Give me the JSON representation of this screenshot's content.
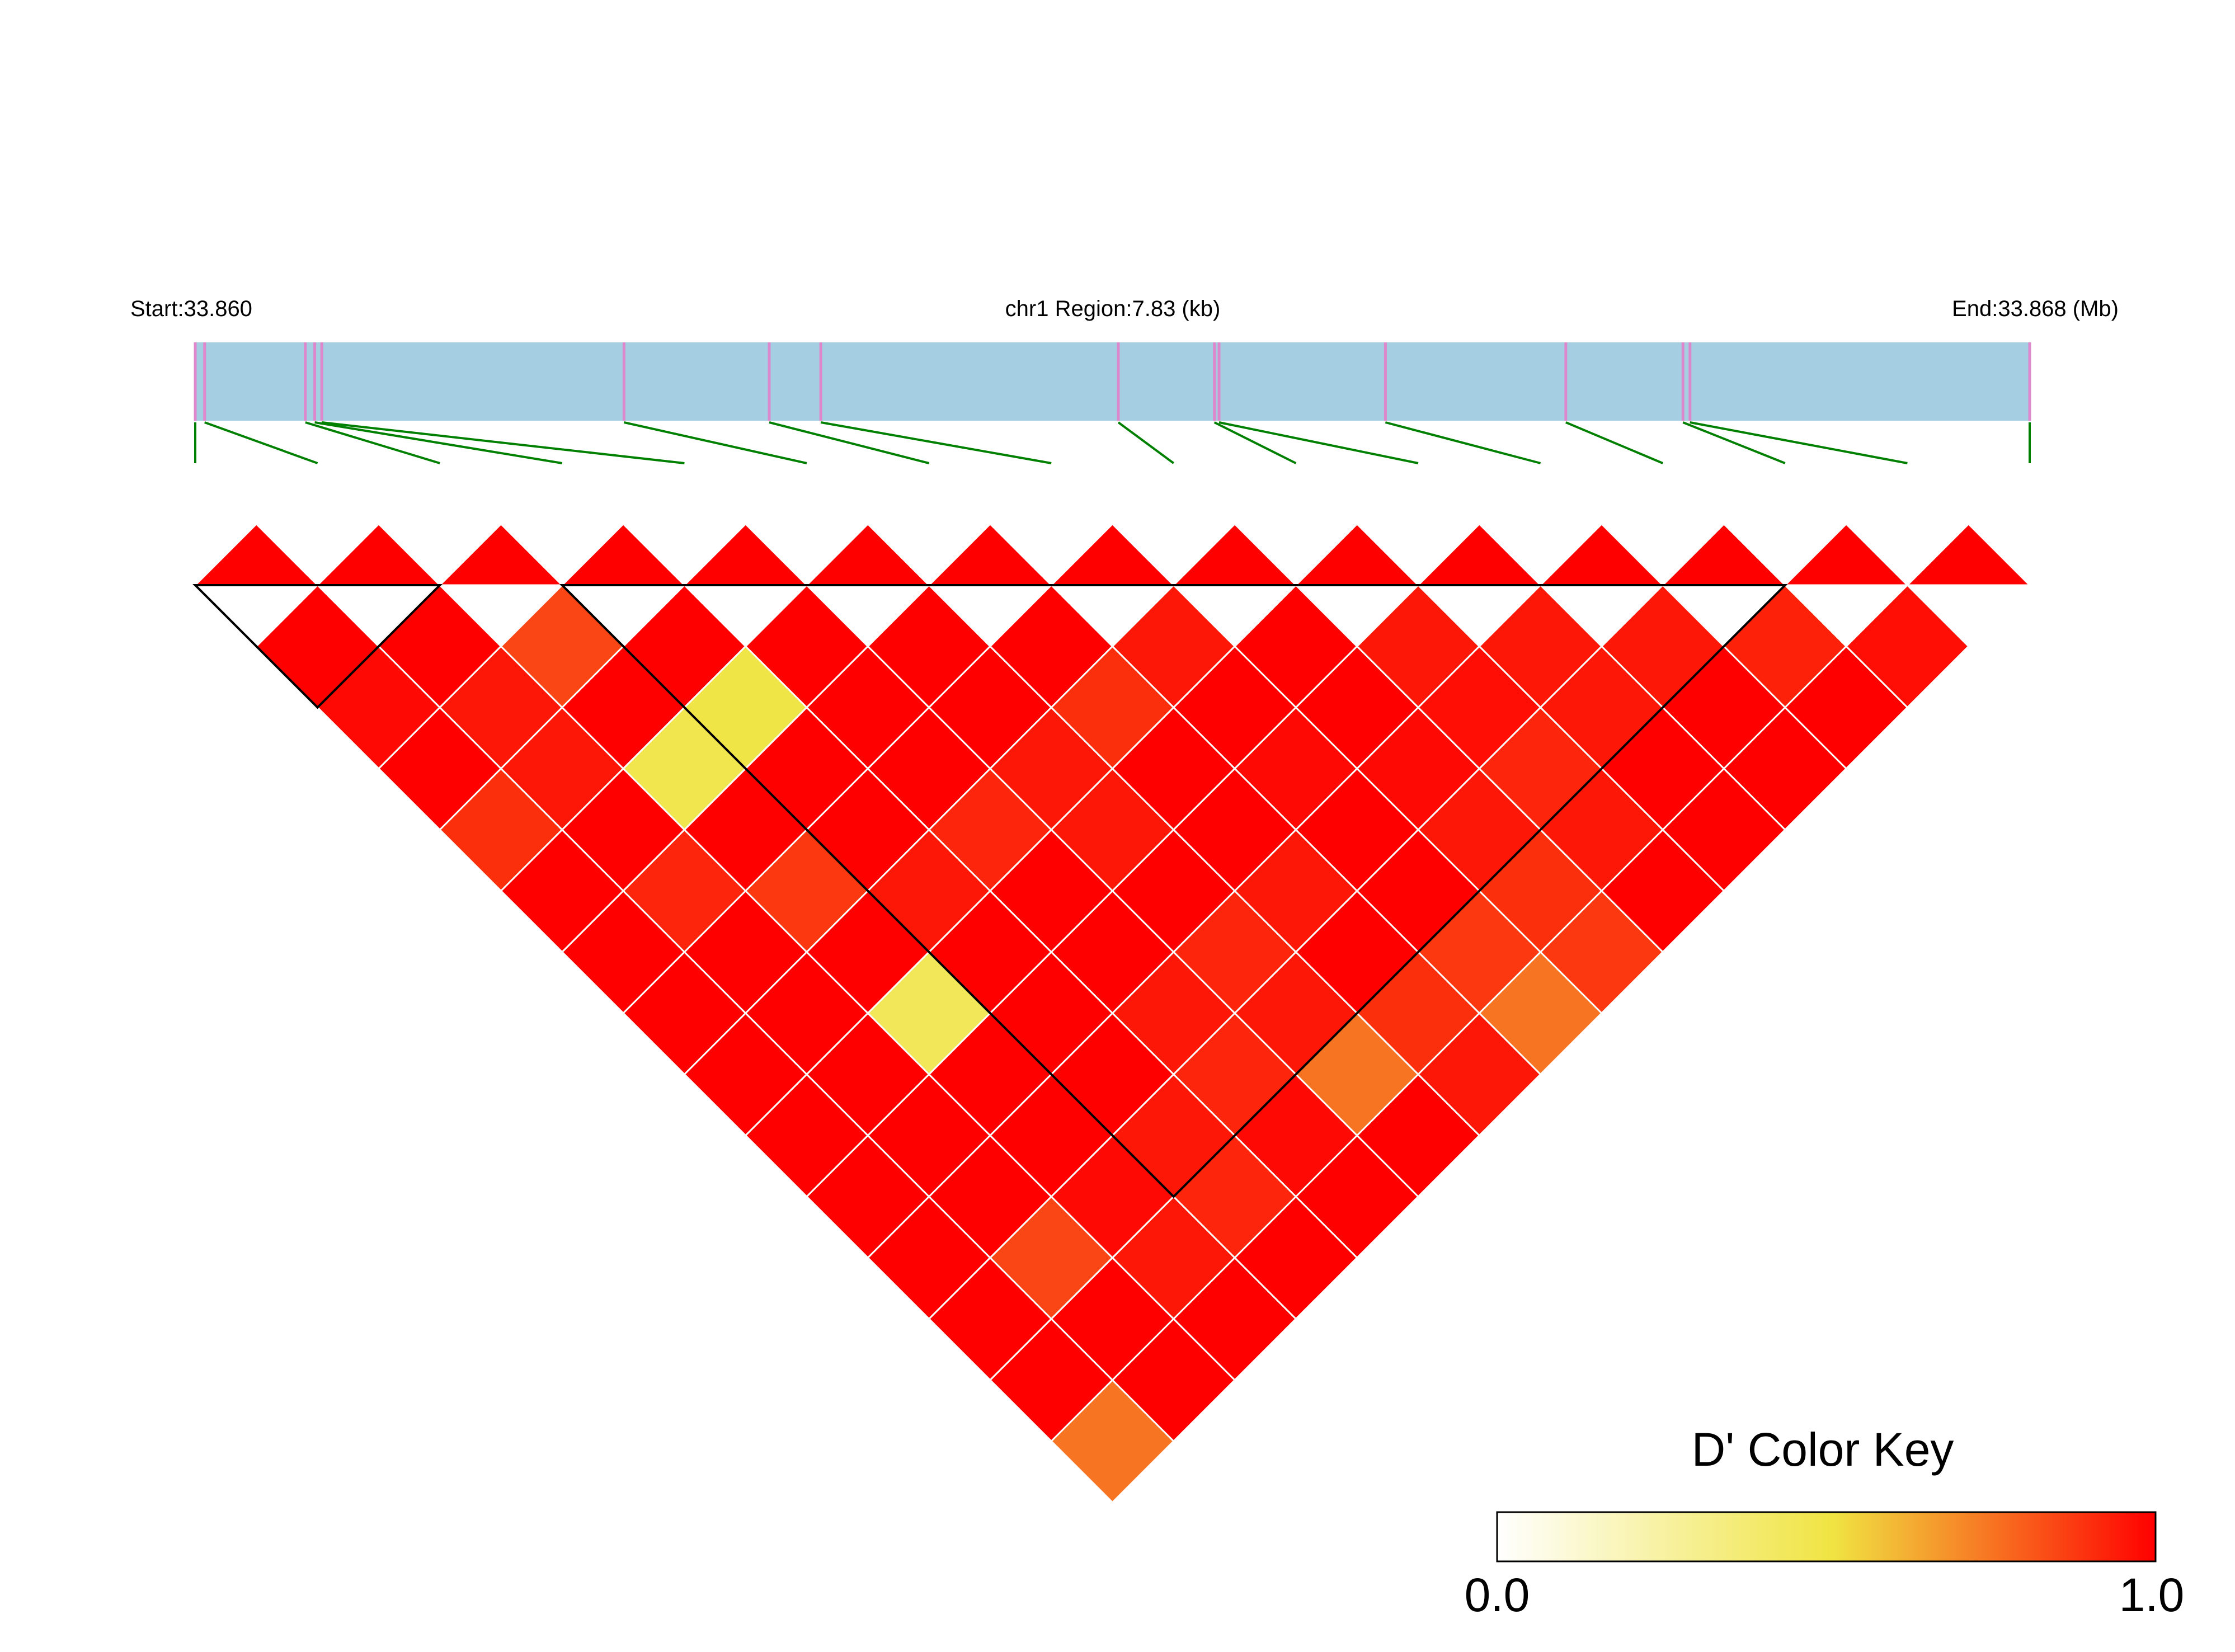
{
  "chart_data": {
    "type": "heatmap",
    "subtype": "LD triangle heatmap (D')",
    "header": {
      "start_label": "Start:33.860",
      "region_label": "chr1 Region:7.83 (kb)",
      "end_label": "End:33.868 (Mb)"
    },
    "n_snps": 16,
    "snp_positions_kb": [
      0.0,
      0.04,
      0.47,
      0.51,
      0.54,
      1.83,
      2.45,
      2.67,
      3.94,
      4.35,
      4.37,
      5.08,
      5.85,
      6.35,
      6.38,
      7.83
    ],
    "d_prime_rows": [
      [
        1.0,
        1.0,
        0.98,
        1.0,
        0.9,
        1.0,
        1.0,
        1.0,
        1.0,
        1.0,
        1.0,
        1.0,
        1.0,
        1.0,
        0.75
      ],
      [
        1.0,
        1.0,
        0.95,
        0.95,
        1.0,
        0.92,
        1.0,
        1.0,
        1.0,
        1.0,
        1.0,
        0.85,
        1.0,
        1.0
      ],
      [
        1.0,
        0.85,
        1.0,
        0.48,
        1.0,
        0.88,
        1.0,
        0.45,
        1.0,
        1.0,
        0.98,
        0.95,
        1.0
      ],
      [
        1.0,
        1.0,
        0.5,
        1.0,
        1.0,
        0.95,
        1.0,
        1.0,
        1.0,
        0.95,
        0.92,
        1.0
      ],
      [
        1.0,
        1.0,
        1.0,
        1.0,
        0.92,
        1.0,
        1.0,
        0.95,
        0.92,
        0.98,
        1.0
      ],
      [
        1.0,
        1.0,
        1.0,
        0.95,
        0.95,
        1.0,
        0.92,
        0.95,
        0.75,
        1.0
      ],
      [
        1.0,
        1.0,
        0.9,
        1.0,
        1.0,
        0.95,
        1.0,
        0.9,
        0.95
      ],
      [
        1.0,
        0.95,
        1.0,
        0.98,
        1.0,
        1.0,
        0.88,
        0.75
      ],
      [
        1.0,
        1.0,
        1.0,
        0.98,
        0.95,
        0.9,
        0.88
      ],
      [
        1.0,
        0.95,
        0.97,
        0.92,
        0.95,
        1.0
      ],
      [
        1.0,
        0.95,
        0.95,
        1.0,
        1.0
      ],
      [
        1.0,
        0.95,
        1.0,
        1.0
      ],
      [
        1.0,
        0.93,
        1.0
      ],
      [
        1.0,
        0.97
      ],
      [
        1.0
      ]
    ],
    "blocks_snp_index_ranges": [
      [
        0,
        2
      ],
      [
        3,
        13
      ]
    ],
    "color_key": {
      "title": "D' Color Key",
      "min_label": "0.0",
      "max_label": "1.0",
      "range": [
        0.0,
        1.0
      ],
      "colors": [
        "#ffffff",
        "#f0e442",
        "#ff0000"
      ]
    },
    "colors": {
      "region_bar": "#a6cee3",
      "snp_tick": "#dd88cc",
      "connector": "#008000",
      "cell_border": "#ffffff",
      "block_outline": "#000000"
    }
  }
}
